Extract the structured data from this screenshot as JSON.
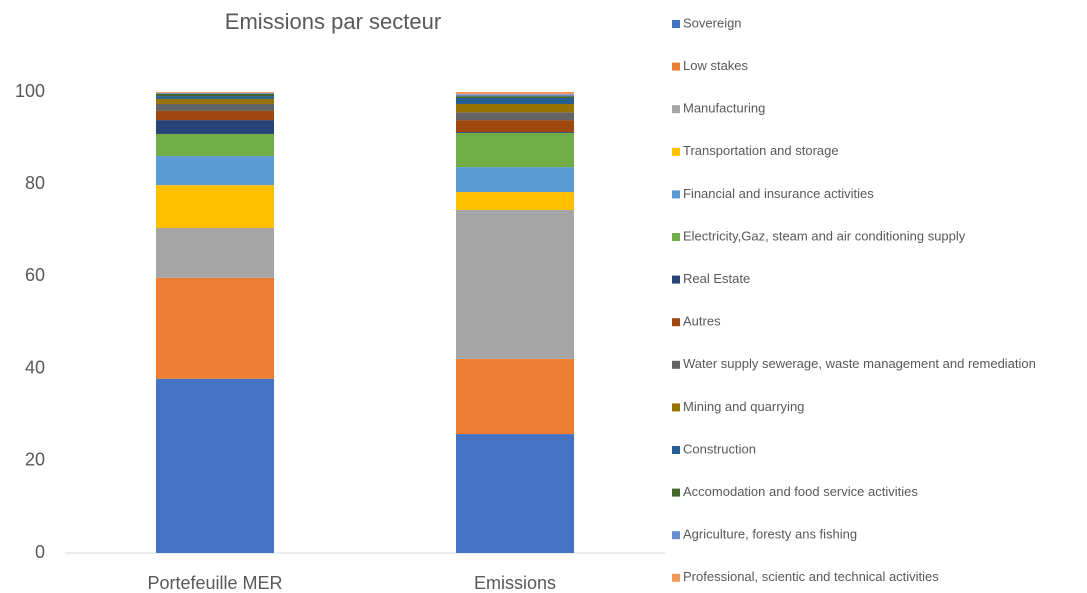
{
  "chart_data": {
    "type": "stacked_bar",
    "title": "Emissions par secteur",
    "categories": [
      "Portefeuille MER",
      "Emissions"
    ],
    "series": [
      {
        "name": "Sovereign",
        "color": "#4472c4",
        "values": [
          37.8,
          25.8
        ]
      },
      {
        "name": "Low stakes",
        "color": "#ed7d31",
        "values": [
          21.9,
          16.3
        ]
      },
      {
        "name": "Manufacturing",
        "color": "#a5a5a5",
        "values": [
          10.8,
          32.3
        ]
      },
      {
        "name": "Transportation and storage",
        "color": "#ffc000",
        "values": [
          9.3,
          3.9
        ]
      },
      {
        "name": "Financial and insurance activities",
        "color": "#5b9bd5",
        "values": [
          6.3,
          5.4
        ]
      },
      {
        "name": "Electricity,Gaz, steam and air conditioning supply",
        "color": "#70ad47",
        "values": [
          4.8,
          7.4
        ]
      },
      {
        "name": "Real Estate",
        "color": "#264478",
        "values": [
          3.0,
          0.2
        ]
      },
      {
        "name": "Autres",
        "color": "#9e480e",
        "values": [
          2.0,
          2.6
        ]
      },
      {
        "name": "Water supply sewerage, waste management and remediation",
        "color": "#636363",
        "values": [
          1.5,
          1.7
        ]
      },
      {
        "name": "Mining and quarrying",
        "color": "#997300",
        "values": [
          1.1,
          1.8
        ]
      },
      {
        "name": "Construction",
        "color": "#255e91",
        "values": [
          0.6,
          1.3
        ]
      },
      {
        "name": "Accomodation and food service activities",
        "color": "#43682b",
        "values": [
          0.5,
          0.4
        ]
      },
      {
        "name": "Agriculture, foresty ans fishing",
        "color": "#698ed0",
        "values": [
          0.2,
          0.4
        ]
      },
      {
        "name": "Professional, scientic and technical activities",
        "color": "#f1975a",
        "values": [
          0.2,
          0.5
        ]
      }
    ],
    "ylim": [
      0,
      100
    ],
    "yticks": [
      0,
      20,
      40,
      60,
      80,
      100
    ],
    "grid": false,
    "legend": "right"
  }
}
